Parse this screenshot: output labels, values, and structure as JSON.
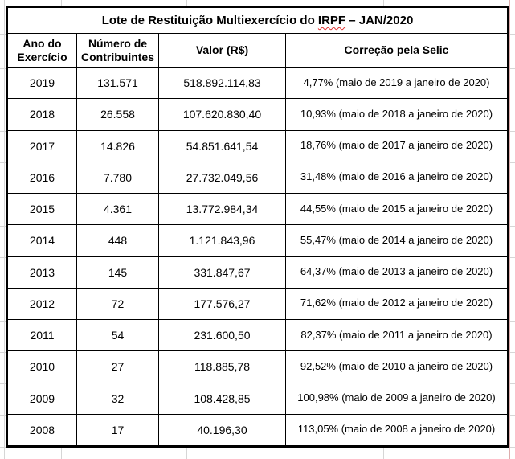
{
  "chart_data": {
    "type": "table",
    "title": "Lote de Restituição Multiexercício do IRPF – JAN/2020",
    "columns": [
      "Ano do Exercício",
      "Número de Contribuintes",
      "Valor (R$)",
      "Correção pela Selic"
    ],
    "rows": [
      [
        "2019",
        "131.571",
        "518.892.114,83",
        "4,77% (maio de 2019 a janeiro de 2020)"
      ],
      [
        "2018",
        "26.558",
        "107.620.830,40",
        "10,93% (maio de 2018 a janeiro de 2020)"
      ],
      [
        "2017",
        "14.826",
        "54.851.641,54",
        "18,76% (maio de 2017 a janeiro de 2020)"
      ],
      [
        "2016",
        "7.780",
        "27.732.049,56",
        "31,48% (maio de 2016 a janeiro de 2020)"
      ],
      [
        "2015",
        "4.361",
        "13.772.984,34",
        "44,55% (maio de 2015 a janeiro de 2020)"
      ],
      [
        "2014",
        "448",
        "1.121.843,96",
        "55,47% (maio de 2014 a janeiro de 2020)"
      ],
      [
        "2013",
        "145",
        "331.847,67",
        "64,37% (maio de 2013 a janeiro de 2020)"
      ],
      [
        "2012",
        "72",
        "177.576,27",
        "71,62% (maio de 2012 a janeiro de 2020)"
      ],
      [
        "2011",
        "54",
        "231.600,50",
        "82,37% (maio de 2011 a janeiro de 2020)"
      ],
      [
        "2010",
        "27",
        "118.885,78",
        "92,52% (maio de 2010 a janeiro de 2020)"
      ],
      [
        "2009",
        "32",
        "108.428,85",
        "100,98% (maio de 2009 a janeiro de 2020)"
      ],
      [
        "2008",
        "17",
        "40.196,30",
        "113,05% (maio de 2008 a janeiro de 2020)"
      ]
    ]
  },
  "ui": {
    "title": {
      "pre": "Lote de Restituição Multiexercício do ",
      "spellcheck_word": "IRPF",
      "post": " – JAN/2020"
    },
    "headers": {
      "year": "Ano do\nExercício",
      "contributors": "Número de\nContribuintes",
      "value": "Valor (R$)",
      "selic": "Correção pela Selic"
    },
    "colors": {
      "border": "#000000",
      "gridline": "#d6d6d6",
      "spellcheck_underline": "#e03131",
      "page_break_line": "#ddadad"
    }
  }
}
